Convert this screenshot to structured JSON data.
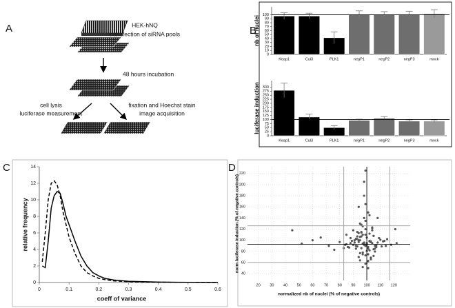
{
  "figure": {
    "panel_labels": [
      "A",
      "B",
      "C",
      "D"
    ]
  },
  "diagram": {
    "cell_line": "HEK-hNQ",
    "steps": [
      "transfection of siRNA pools",
      "48 hours incubation"
    ],
    "left_branch": [
      "cell lysis",
      "luciferase measurement"
    ],
    "right_branch": [
      "fixation and Hoechst stain",
      "image acquisition"
    ]
  },
  "chart_data": [
    {
      "type": "bar",
      "ylabel": "nb of nuclei",
      "categories": [
        "Keap1",
        "Cul3",
        "PLK1",
        "negP1",
        "negP2",
        "negP3",
        "mock"
      ],
      "values": [
        97,
        97,
        42,
        100,
        100,
        100,
        103
      ],
      "errors": [
        8,
        7,
        15,
        10,
        8,
        9,
        10
      ],
      "colors": [
        "#000000",
        "#000000",
        "#000000",
        "#6e6e6e",
        "#6e6e6e",
        "#6e6e6e",
        "#9a9a9a"
      ],
      "ylim": [
        0,
        120
      ],
      "yticks": [
        0,
        10,
        20,
        30,
        40,
        50,
        60,
        70,
        80,
        90,
        100
      ],
      "reference_line": 100
    },
    {
      "type": "bar",
      "ylabel": "luciferase induction",
      "categories": [
        "Keap1",
        "Cul3",
        "PLK1",
        "negP1",
        "negP2",
        "negP3",
        "mock"
      ],
      "values": [
        280,
        115,
        50,
        95,
        108,
        90,
        90
      ],
      "errors": [
        45,
        18,
        12,
        7,
        10,
        8,
        8
      ],
      "colors": [
        "#000000",
        "#000000",
        "#000000",
        "#6e6e6e",
        "#6e6e6e",
        "#6e6e6e",
        "#9a9a9a"
      ],
      "ylim": [
        0,
        340
      ],
      "yticks": [
        0,
        25,
        50,
        75,
        100,
        125,
        150,
        175,
        200,
        225,
        250,
        275,
        300
      ],
      "reference_line": 100
    },
    {
      "type": "line",
      "xlabel": "coeff of variance",
      "ylabel": "relative frequency",
      "x": [
        0.01,
        0.02,
        0.03,
        0.04,
        0.05,
        0.06,
        0.07,
        0.08,
        0.09,
        0.1,
        0.12,
        0.14,
        0.16,
        0.18,
        0.2,
        0.22,
        0.25,
        0.3,
        0.35,
        0.4,
        0.5,
        0.6
      ],
      "series": [
        {
          "color": "#000000",
          "dash": "solid",
          "values": [
            2,
            1.8,
            5,
            9,
            10.5,
            11,
            10.8,
            9.5,
            8,
            7,
            5,
            3.2,
            2,
            1.2,
            0.8,
            0.5,
            0.3,
            0.15,
            0.1,
            0.05,
            0.02,
            0
          ]
        },
        {
          "color": "#000000",
          "dash": "dashed",
          "values": [
            2.5,
            6,
            10,
            12,
            12.3,
            11.8,
            10.5,
            8.5,
            7,
            5.5,
            3.5,
            2,
            1.2,
            0.8,
            0.5,
            0.35,
            0.2,
            0.1,
            0.05,
            0.03,
            0.02,
            0
          ]
        }
      ],
      "xlim": [
        0,
        0.6
      ],
      "xticks": [
        0,
        0.1,
        0.2,
        0.3,
        0.4,
        0.5,
        0.6
      ],
      "ylim": [
        0,
        14
      ],
      "yticks": [
        0,
        2,
        4,
        6,
        8,
        10,
        12,
        14
      ]
    },
    {
      "type": "scatter",
      "xlabel": "normalized nb of nuclei (% of negative controls)",
      "ylabel": "norm luciferase induction (% of negative controls)",
      "color": "#555555",
      "grid": true,
      "x": [
        98,
        101,
        95,
        104,
        92,
        99,
        97,
        103,
        106,
        90,
        100,
        94,
        108,
        96,
        102,
        89,
        105,
        93,
        99,
        101,
        97,
        110,
        87,
        95,
        103,
        100,
        98,
        92,
        106,
        94,
        102,
        96,
        99,
        104,
        91,
        107,
        97,
        100,
        93,
        105,
        88,
        99,
        102,
        95,
        101,
        98,
        109,
        86,
        96,
        103,
        94,
        100,
        97,
        112,
        85,
        99,
        104,
        92,
        101,
        95,
        98,
        106,
        90,
        102,
        97,
        100,
        93,
        107,
        96,
        99,
        103,
        94,
        84,
        113,
        98,
        101,
        91,
        105,
        97,
        100,
        88,
        104,
        95,
        99,
        102,
        96,
        111,
        93,
        98,
        100,
        80,
        72,
        45,
        60,
        118,
        122,
        76,
        66,
        114,
        52,
        121,
        83,
        99,
        97,
        101,
        115,
        108,
        85,
        94,
        105
      ],
      "y": [
        93,
        88,
        100,
        95,
        85,
        110,
        78,
        98,
        90,
        92,
        105,
        70,
        96,
        115,
        82,
        99,
        108,
        89,
        120,
        75,
        94,
        101,
        87,
        130,
        66,
        93,
        140,
        103,
        80,
        97,
        112,
        86,
        73,
        118,
        96,
        91,
        125,
        60,
        107,
        84,
        95,
        135,
        99,
        77,
        150,
        92,
        104,
        88,
        114,
        69,
        100,
        81,
        94,
        98,
        110,
        165,
        123,
        90,
        63,
        106,
        96,
        85,
        118,
        145,
        75,
        92,
        102,
        88,
        128,
        58,
        97,
        113,
        92,
        99,
        180,
        85,
        100,
        72,
        110,
        95,
        104,
        122,
        64,
        90,
        98,
        107,
        89,
        115,
        205,
        93,
        97,
        90,
        118,
        100,
        92,
        95,
        83,
        105,
        90,
        94,
        120,
        86,
        225,
        52,
        50,
        102,
        140,
        93,
        160,
        108
      ],
      "xlim": [
        12,
        132
      ],
      "xticks": [
        20,
        30,
        40,
        50,
        60,
        70,
        80,
        90,
        100,
        110,
        120
      ],
      "ylim": [
        28,
        232
      ],
      "yticks": [
        40,
        60,
        80,
        100,
        120,
        140,
        160,
        180,
        200,
        220
      ],
      "x_reference_lines": [
        {
          "value": 83,
          "color": "#9a9a9a"
        },
        {
          "value": 100,
          "color": "#000000"
        },
        {
          "value": 117,
          "color": "#9a9a9a"
        }
      ],
      "y_reference_lines": [
        {
          "value": 60,
          "color": "#9a9a9a"
        },
        {
          "value": 93,
          "color": "#000000"
        },
        {
          "value": 126,
          "color": "#9a9a9a"
        }
      ]
    }
  ]
}
